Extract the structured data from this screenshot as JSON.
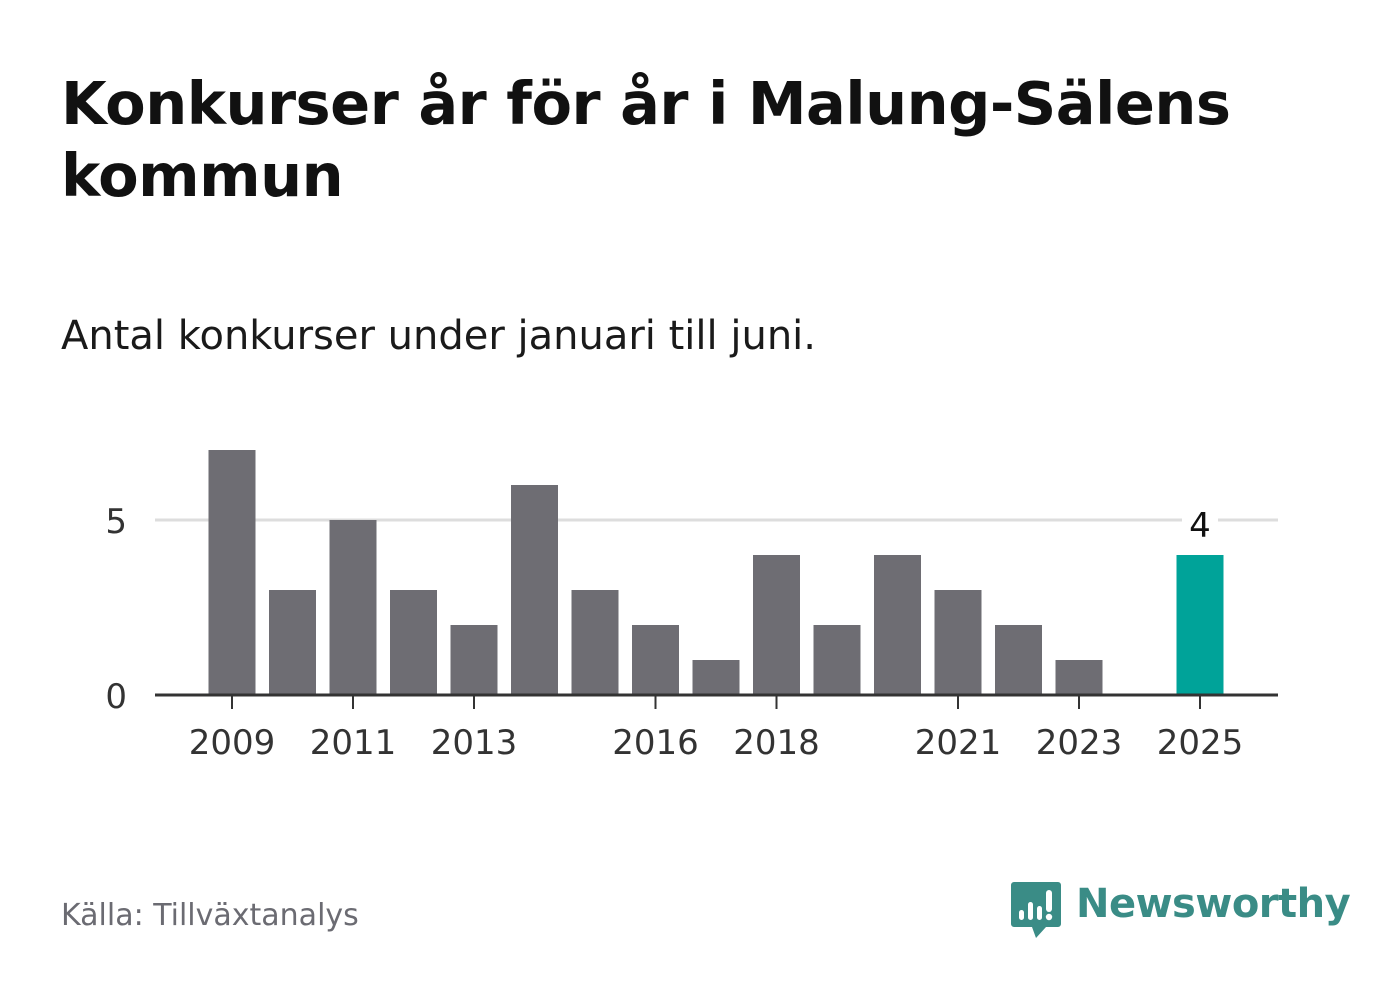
{
  "title": "Konkurser år för år i Malung-Sälens kommun",
  "subtitle": "Antal konkurser under januari till juni.",
  "source": "Källa: Tillväxtanalys",
  "brand": {
    "name": "Newsworthy",
    "icon": "newsworthy-logo-icon"
  },
  "colors": {
    "bar": "#6e6d73",
    "highlight": "#00a399",
    "gridline": "#dddddd",
    "axis": "#333333",
    "brand": "#3a8c86"
  },
  "chart_data": {
    "type": "bar",
    "categories": [
      "2009",
      "2010",
      "2011",
      "2012",
      "2013",
      "2014",
      "2015",
      "2016",
      "2017",
      "2018",
      "2019",
      "2020",
      "2021",
      "2022",
      "2023",
      "2024",
      "2025"
    ],
    "values": [
      7,
      3,
      5,
      3,
      2,
      6,
      3,
      2,
      1,
      4,
      2,
      4,
      3,
      2,
      1,
      0,
      4
    ],
    "x_tick_labels": [
      "2009",
      "2011",
      "2013",
      "2016",
      "2018",
      "2021",
      "2023",
      "2025"
    ],
    "y_ticks": [
      "0",
      "5"
    ],
    "ylim": [
      0,
      7
    ],
    "grid": true,
    "highlight_category": "2025",
    "annotations": [
      {
        "category": "2025",
        "text": "4"
      }
    ]
  }
}
